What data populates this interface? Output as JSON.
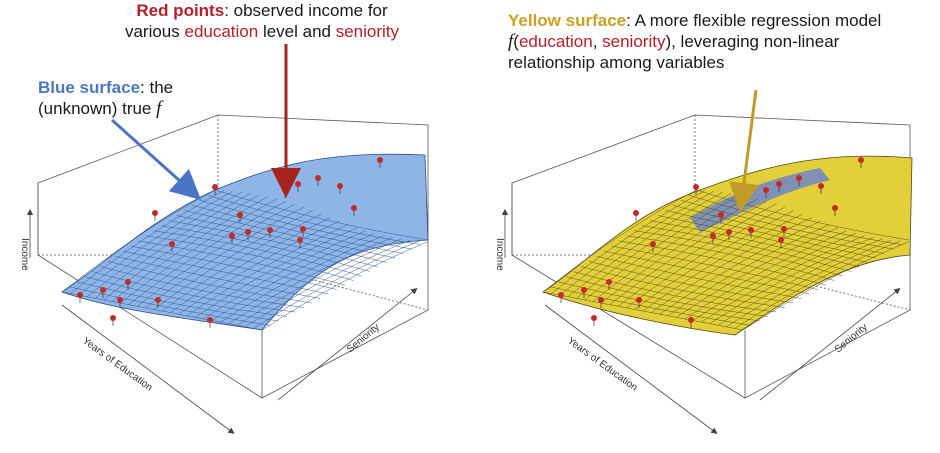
{
  "annotations": {
    "red_points": {
      "title": "Red points",
      "text_1": ": observed income for",
      "text_2": "various ",
      "word_education": "education",
      "text_3": " level and ",
      "word_seniority": "seniority"
    },
    "blue_surface": {
      "title": "Blue surface",
      "text_1": ": the",
      "text_2": "(unknown) true ",
      "symbol": "f"
    },
    "yellow_surface": {
      "title": "Yellow surface",
      "text_1": ": A more flexible regression model",
      "symbol": "f",
      "paren_open": "(",
      "word_education": "education",
      "comma": ", ",
      "word_seniority": "seniority",
      "paren_close": "), leveraging non-linear",
      "text_2": "relationship among variables"
    }
  },
  "axes": {
    "left": {
      "z_label": "Income",
      "x_label": "Years of Education",
      "y_label": "Seniority"
    },
    "right": {
      "z_label": "Income",
      "x_label": "Years of Education",
      "y_label": "Seniority"
    }
  },
  "colors": {
    "blue_surface": "#8fb5e6",
    "blue_mesh": "#2c4f86",
    "yellow_surface": "#e3cf3a",
    "yellow_mesh": "#4e4a1a",
    "points": "#c42a26",
    "red_arrow": "#a8231e",
    "blue_arrow": "#4a74c6",
    "gold_arrow": "#c29a28"
  }
}
